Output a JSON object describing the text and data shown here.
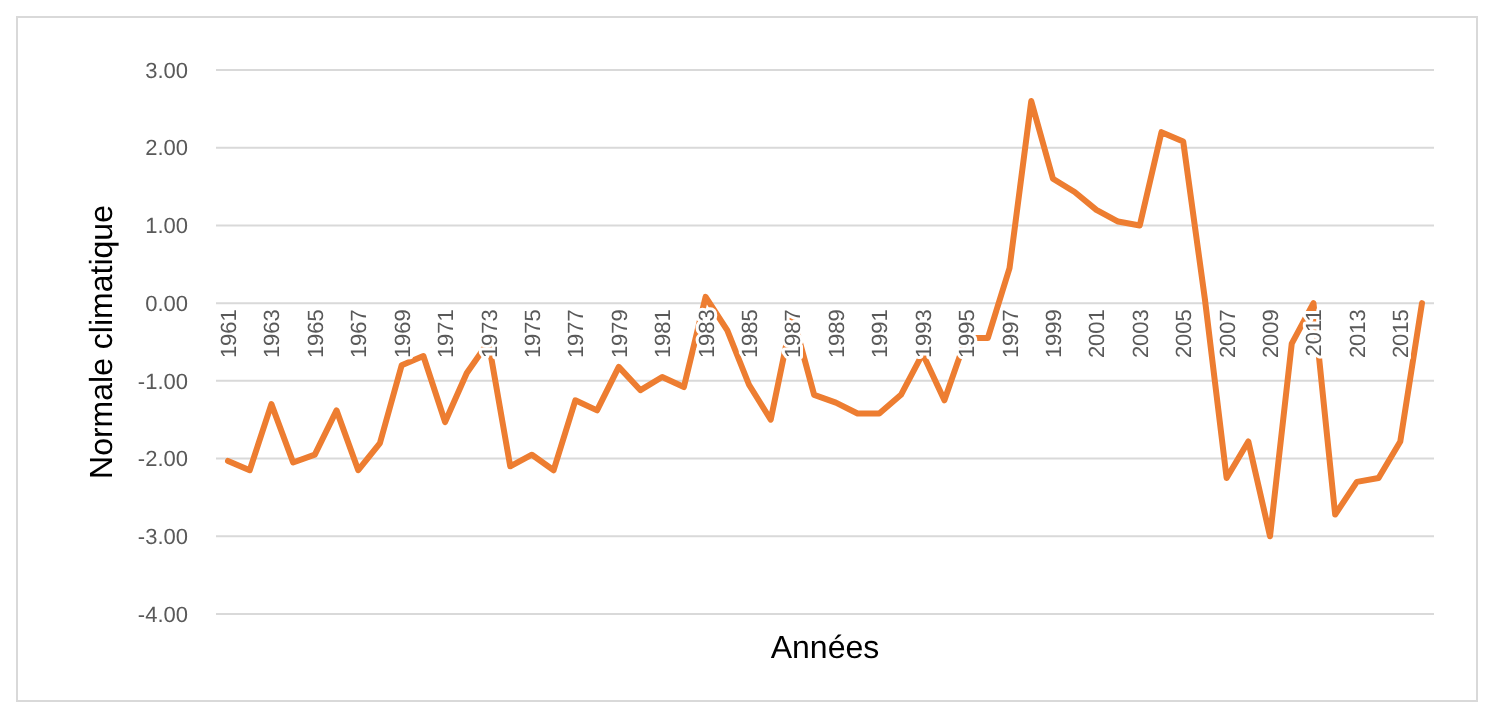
{
  "chart_data": {
    "type": "line",
    "xlabel": "Années",
    "ylabel": "Normale climatique",
    "categories": [
      "1961",
      null,
      "1963",
      null,
      "1965",
      null,
      "1967",
      null,
      "1969",
      null,
      "1971",
      null,
      "1973",
      null,
      "1975",
      null,
      "1977",
      null,
      "1979",
      null,
      "1981",
      null,
      "1983",
      null,
      "1985",
      null,
      "1987",
      null,
      "1989",
      null,
      "1991",
      null,
      "1993",
      null,
      "1995",
      null,
      "1997",
      null,
      "1999",
      null,
      "2001",
      null,
      "2003",
      null,
      "2005",
      null,
      "2007",
      null,
      "2009",
      null,
      "2011",
      null,
      "2013",
      null,
      "2015",
      null
    ],
    "series": [
      {
        "color": "#ed7d31",
        "values": [
          -2.03,
          -2.15,
          -1.3,
          -2.05,
          -1.95,
          -1.38,
          -2.15,
          -1.8,
          -0.8,
          -0.68,
          -1.53,
          -0.9,
          -0.5,
          -2.1,
          -1.95,
          -2.15,
          -1.25,
          -1.38,
          -0.82,
          -1.12,
          -0.95,
          -1.08,
          0.08,
          -0.35,
          -1.05,
          -1.5,
          -0.15,
          -1.18,
          -1.28,
          -1.42,
          -1.42,
          -1.18,
          -0.65,
          -1.25,
          -0.45,
          -0.45,
          0.45,
          2.6,
          1.6,
          1.43,
          1.2,
          1.05,
          1.0,
          2.2,
          2.08,
          0.05,
          -2.25,
          -1.78,
          -3.0,
          -0.52,
          0.0,
          -2.72,
          -2.3,
          -2.25,
          -1.78,
          0.0
        ]
      }
    ],
    "ylim": [
      -4,
      3
    ],
    "yticks": [
      {
        "value": -4,
        "label": "-4.00"
      },
      {
        "value": -3,
        "label": "-3.00"
      },
      {
        "value": -2,
        "label": "-2.00"
      },
      {
        "value": -1,
        "label": "-1.00"
      },
      {
        "value": 0,
        "label": "0.00"
      },
      {
        "value": 1,
        "label": "1.00"
      },
      {
        "value": 2,
        "label": "2.00"
      },
      {
        "value": 3,
        "label": "3.00"
      }
    ],
    "grid": "y",
    "marker": "none",
    "line_style": "solid"
  }
}
